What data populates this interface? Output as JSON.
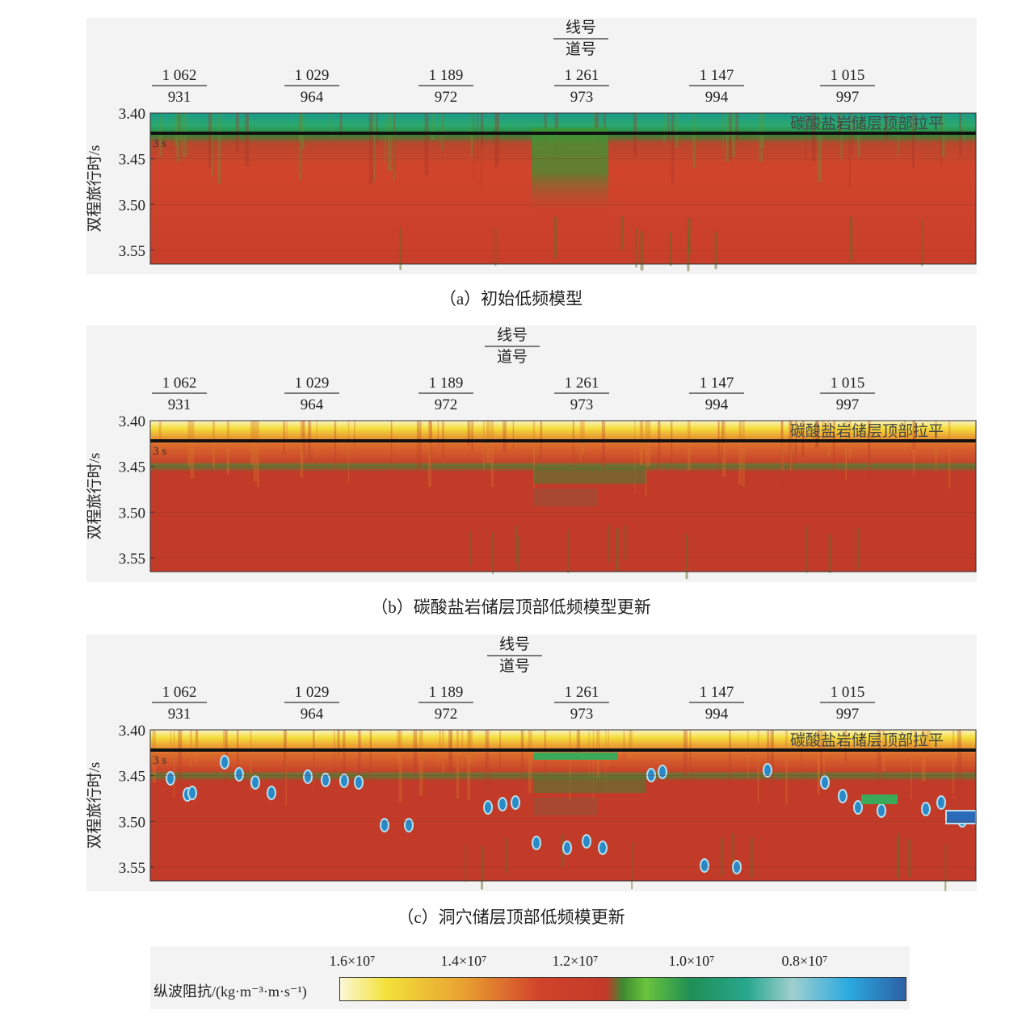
{
  "axis_header": {
    "numerator": "线号",
    "denominator": "道号"
  },
  "chart_data": [
    {
      "type": "heatmap",
      "caption": "（a）初始低频模型",
      "ylabel": "双程旅行时/s",
      "yticks": [
        "3.40",
        "3.45",
        "3.50",
        "3.55"
      ],
      "ylim": [
        3.4,
        3.565
      ],
      "flatten_label": "碳酸盐岩储层顶部拉平",
      "flatten_time_label": "3 s",
      "x_ticks": [
        {
          "line": "1 062",
          "trace": "931"
        },
        {
          "line": "1 029",
          "trace": "964"
        },
        {
          "line": "1 189",
          "trace": "972"
        },
        {
          "line": "1 261",
          "trace": "973"
        },
        {
          "line": "1 147",
          "trace": "994"
        },
        {
          "line": "1 015",
          "trace": "997"
        }
      ]
    },
    {
      "type": "heatmap",
      "caption": "（b）碳酸盐岩储层顶部低频模型更新",
      "ylabel": "双程旅行时/s",
      "yticks": [
        "3.40",
        "3.45",
        "3.50",
        "3.55"
      ],
      "ylim": [
        3.4,
        3.565
      ],
      "flatten_label": "碳酸盐岩储层顶部拉平",
      "flatten_time_label": "3 s",
      "x_ticks": [
        {
          "line": "1 062",
          "trace": "931"
        },
        {
          "line": "1 029",
          "trace": "964"
        },
        {
          "line": "1 189",
          "trace": "972"
        },
        {
          "line": "1 261",
          "trace": "973"
        },
        {
          "line": "1 147",
          "trace": "994"
        },
        {
          "line": "1 015",
          "trace": "997"
        }
      ]
    },
    {
      "type": "heatmap",
      "caption": "（c）洞穴储层顶部低频模更新",
      "ylabel": "双程旅行时/s",
      "yticks": [
        "3.40",
        "3.45",
        "3.50",
        "3.55"
      ],
      "ylim": [
        3.4,
        3.565
      ],
      "flatten_label": "碳酸盐岩储层顶部拉平",
      "flatten_time_label": "3 s",
      "x_ticks": [
        {
          "line": "1 062",
          "trace": "931"
        },
        {
          "line": "1 029",
          "trace": "964"
        },
        {
          "line": "1 189",
          "trace": "972"
        },
        {
          "line": "1 261",
          "trace": "973"
        },
        {
          "line": "1 147",
          "trace": "994"
        },
        {
          "line": "1 015",
          "trace": "997"
        }
      ]
    }
  ],
  "colorbar": {
    "label": "纵波阻抗/(kg·m⁻³·m·s⁻¹)",
    "ticks": [
      "1.6×10⁷",
      "1.4×10⁷",
      "1.2×10⁷",
      "1.0×10⁷",
      "0.8×10⁷"
    ],
    "colors": [
      "#fbf7d8",
      "#f3e23a",
      "#e9a030",
      "#d1442b",
      "#c23a28",
      "#3e8a32",
      "#6ac43c",
      "#1f8f55",
      "#27a88e",
      "#9fcfcf",
      "#2aa9e0",
      "#2d5fa3"
    ]
  }
}
